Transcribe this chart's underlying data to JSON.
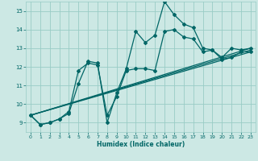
{
  "xlabel": "Humidex (Indice chaleur)",
  "bg_color": "#cce8e4",
  "grid_color": "#99ccc6",
  "line_color": "#006666",
  "xlim": [
    -0.5,
    23.5
  ],
  "ylim": [
    8.5,
    15.5
  ],
  "yticks": [
    9,
    10,
    11,
    12,
    13,
    14,
    15
  ],
  "xticks": [
    0,
    1,
    2,
    3,
    4,
    5,
    6,
    7,
    8,
    9,
    10,
    11,
    12,
    13,
    14,
    15,
    16,
    17,
    18,
    19,
    20,
    21,
    22,
    23
  ],
  "series1_x": [
    0,
    1,
    2,
    3,
    4,
    5,
    6,
    7,
    8,
    9,
    10,
    11,
    12,
    13,
    14,
    15,
    16,
    17,
    18,
    19,
    20,
    21,
    22,
    23
  ],
  "series1_y": [
    9.4,
    8.9,
    9.0,
    9.2,
    9.5,
    11.1,
    12.3,
    12.2,
    9.0,
    10.6,
    11.9,
    13.9,
    13.3,
    13.7,
    15.5,
    14.8,
    14.3,
    14.1,
    13.0,
    12.9,
    12.4,
    12.5,
    12.8,
    12.8
  ],
  "series2_x": [
    0,
    1,
    2,
    3,
    4,
    5,
    6,
    7,
    8,
    9,
    10,
    11,
    12,
    13,
    14,
    15,
    16,
    17,
    18,
    19,
    20,
    21,
    22,
    23
  ],
  "series2_y": [
    9.4,
    8.9,
    9.0,
    9.2,
    9.6,
    11.8,
    12.2,
    12.1,
    9.4,
    10.4,
    11.8,
    11.9,
    11.9,
    11.8,
    13.9,
    14.0,
    13.6,
    13.5,
    12.8,
    12.9,
    12.5,
    13.0,
    12.9,
    13.0
  ],
  "series3_x": [
    0,
    23
  ],
  "series3_y": [
    9.4,
    12.8
  ],
  "series4_x": [
    0,
    23
  ],
  "series4_y": [
    9.4,
    13.0
  ],
  "series5_x": [
    0,
    23
  ],
  "series5_y": [
    9.4,
    12.9
  ],
  "marker": "D",
  "marker_size": 2.0,
  "linewidth": 0.9
}
